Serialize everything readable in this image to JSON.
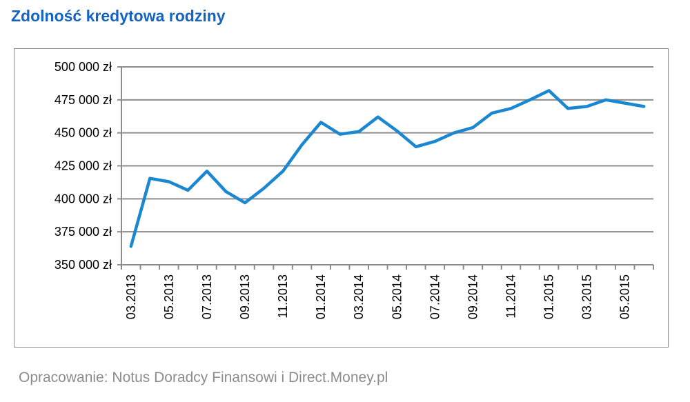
{
  "title": "Zdolność kredytowa rodziny",
  "source": "Opracowanie: Notus Doradcy Finansowi i Direct.Money.pl",
  "chart_data": {
    "type": "line",
    "title": "Zdolność kredytowa rodziny",
    "xlabel": "",
    "ylabel": "",
    "ylim": [
      350000,
      500000
    ],
    "y_ticks": [
      "350 000 zł",
      "375 000 zł",
      "400 000 zł",
      "425 000 zł",
      "450 000 zł",
      "475 000 zł",
      "500 000 zł"
    ],
    "y_tick_values": [
      350000,
      375000,
      400000,
      425000,
      450000,
      475000,
      500000
    ],
    "x_tick_labels": [
      "03.2013",
      "05.2013",
      "07.2013",
      "09.2013",
      "11.2013",
      "01.2014",
      "03.2014",
      "05.2014",
      "07.2014",
      "09.2014",
      "11.2014",
      "01.2015",
      "03.2015",
      "05.2015"
    ],
    "grid": true,
    "line_color": "#1a87d0",
    "x": [
      "03.2013",
      "04.2013",
      "05.2013",
      "06.2013",
      "07.2013",
      "08.2013",
      "09.2013",
      "10.2013",
      "11.2013",
      "12.2013",
      "01.2014",
      "02.2014",
      "03.2014",
      "04.2014",
      "05.2014",
      "06.2014",
      "07.2014",
      "08.2014",
      "09.2014",
      "10.2014",
      "11.2014",
      "12.2014",
      "01.2015",
      "02.2015",
      "03.2015",
      "04.2015",
      "05.2015",
      "06.2015"
    ],
    "series": [
      {
        "values": [
          364000,
          415500,
          413000,
          406500,
          421000,
          405500,
          397000,
          408000,
          421000,
          441000,
          458000,
          449000,
          451000,
          462000,
          451500,
          439500,
          443500,
          450000,
          454000,
          465000,
          468500,
          475000,
          482000,
          468500,
          470000,
          475000,
          472500,
          470000
        ]
      }
    ]
  }
}
